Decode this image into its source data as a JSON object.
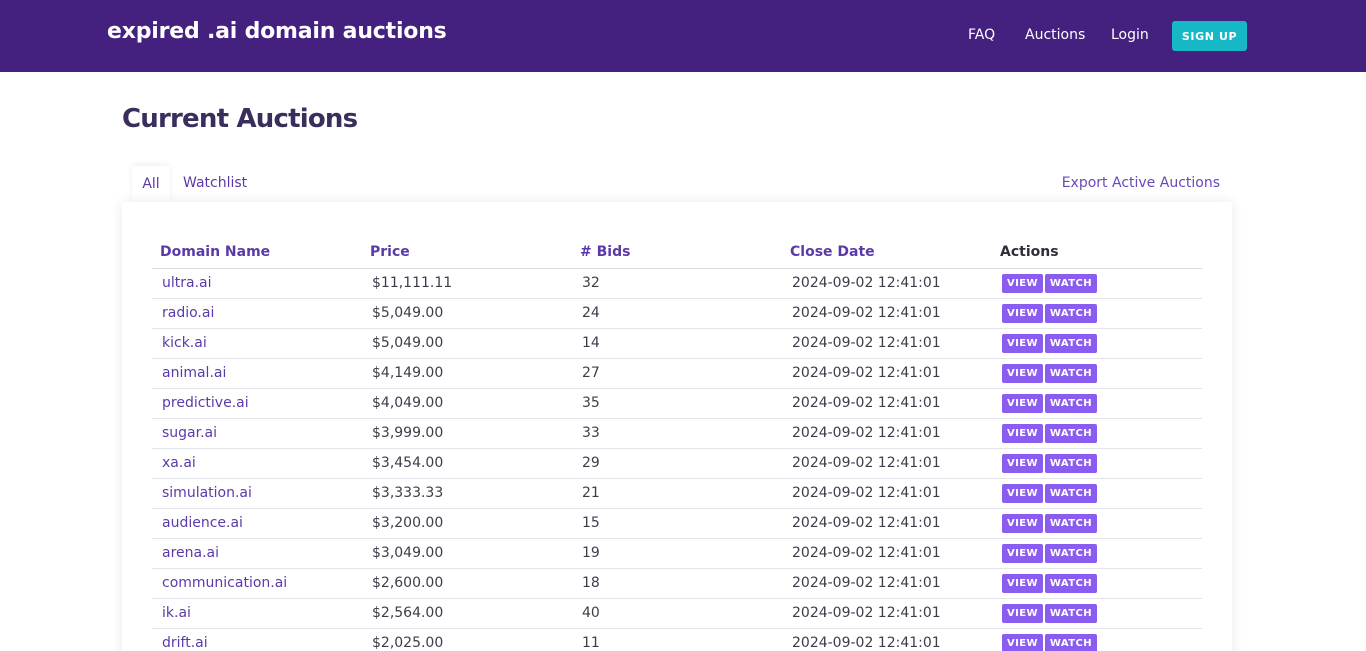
{
  "brand": "expired .ai domain auctions",
  "nav": {
    "faq": "FAQ",
    "auctions": "Auctions",
    "login": "Login",
    "signup": "SIGN UP"
  },
  "page_title": "Current Auctions",
  "tabs": {
    "all": "All",
    "watchlist": "Watchlist",
    "export": "Export Active Auctions"
  },
  "table": {
    "headers": {
      "domain": "Domain Name",
      "price": "Price",
      "bids": "# Bids",
      "close": "Close Date",
      "actions": "Actions"
    },
    "view_label": "VIEW",
    "watch_label": "WATCH",
    "rows": [
      {
        "domain": "ultra.ai",
        "price": "$11,111.11",
        "bids": "32",
        "close": "2024-09-02 12:41:01"
      },
      {
        "domain": "radio.ai",
        "price": "$5,049.00",
        "bids": "24",
        "close": "2024-09-02 12:41:01"
      },
      {
        "domain": "kick.ai",
        "price": "$5,049.00",
        "bids": "14",
        "close": "2024-09-02 12:41:01"
      },
      {
        "domain": "animal.ai",
        "price": "$4,149.00",
        "bids": "27",
        "close": "2024-09-02 12:41:01"
      },
      {
        "domain": "predictive.ai",
        "price": "$4,049.00",
        "bids": "35",
        "close": "2024-09-02 12:41:01"
      },
      {
        "domain": "sugar.ai",
        "price": "$3,999.00",
        "bids": "33",
        "close": "2024-09-02 12:41:01"
      },
      {
        "domain": "xa.ai",
        "price": "$3,454.00",
        "bids": "29",
        "close": "2024-09-02 12:41:01"
      },
      {
        "domain": "simulation.ai",
        "price": "$3,333.33",
        "bids": "21",
        "close": "2024-09-02 12:41:01"
      },
      {
        "domain": "audience.ai",
        "price": "$3,200.00",
        "bids": "15",
        "close": "2024-09-02 12:41:01"
      },
      {
        "domain": "arena.ai",
        "price": "$3,049.00",
        "bids": "19",
        "close": "2024-09-02 12:41:01"
      },
      {
        "domain": "communication.ai",
        "price": "$2,600.00",
        "bids": "18",
        "close": "2024-09-02 12:41:01"
      },
      {
        "domain": "ik.ai",
        "price": "$2,564.00",
        "bids": "40",
        "close": "2024-09-02 12:41:01"
      },
      {
        "domain": "drift.ai",
        "price": "$2,025.00",
        "bids": "11",
        "close": "2024-09-02 12:41:01"
      }
    ]
  },
  "colors": {
    "navbar": "#44217f",
    "signup": "#15b8c4",
    "accent": "#5b3aa8",
    "action_button": "#8b5cf0"
  }
}
